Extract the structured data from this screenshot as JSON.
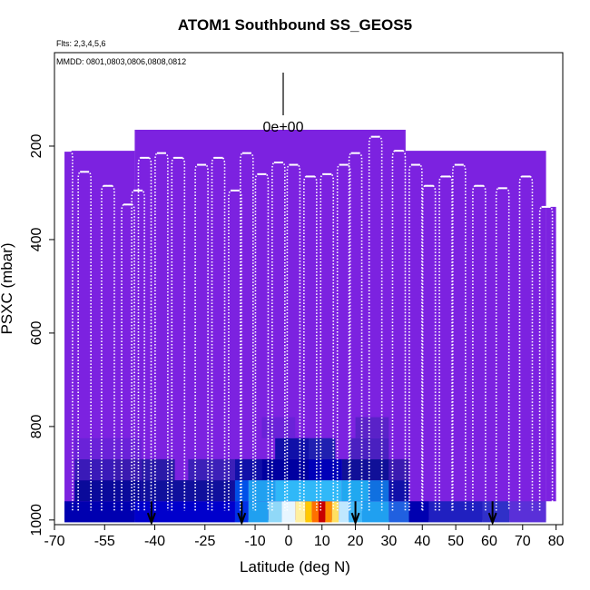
{
  "chart_data": {
    "type": "heatmap",
    "title": "ATOM1 Southbound SS_GEOS5",
    "flights_note": "Flts: 2,3,4,5,6",
    "dates_note": "MMDD: 0801,0803,0806,0808,0812",
    "xlabel": "Latitude (deg N)",
    "ylabel": "PSXC (mbar)",
    "xlim": [
      -70,
      82
    ],
    "ylim": [
      1010,
      0
    ],
    "x_ticks": [
      -70,
      -55,
      -40,
      -25,
      -10,
      0,
      10,
      20,
      30,
      40,
      50,
      60,
      70,
      80
    ],
    "x_tick_labels": [
      "-70",
      "-55",
      "-40",
      "-25",
      "-10",
      "0",
      "10",
      "20",
      "30",
      "40",
      "50",
      "60",
      "70",
      "80"
    ],
    "y_ticks": [
      200,
      400,
      600,
      800,
      1000
    ],
    "y_tick_labels": [
      "200",
      "400",
      "600",
      "800",
      "1000"
    ],
    "scale_label": "0e+00",
    "background_color": "#7c22e0",
    "arrows_lat": [
      -41,
      -14,
      20,
      61
    ],
    "background_blocks": [
      {
        "lat": [
          -67,
          -46
        ],
        "p": [
          210,
          1000
        ]
      },
      {
        "lat": [
          -46,
          35
        ],
        "p": [
          165,
          1000
        ]
      },
      {
        "lat": [
          35,
          77
        ],
        "p": [
          210,
          1000
        ]
      },
      {
        "lat": [
          77,
          80
        ],
        "p": [
          330,
          960
        ]
      }
    ],
    "cells": [
      {
        "lat": [
          -67,
          -46
        ],
        "p": [
          960,
          1005
        ],
        "c": "#0000b0"
      },
      {
        "lat": [
          -46,
          -16
        ],
        "p": [
          960,
          1005
        ],
        "c": "#0000cc"
      },
      {
        "lat": [
          -64,
          -44
        ],
        "p": [
          915,
          960
        ],
        "c": "#0a0a9a"
      },
      {
        "lat": [
          -44,
          -16
        ],
        "p": [
          915,
          960
        ],
        "c": "#10109c"
      },
      {
        "lat": [
          -16,
          -12
        ],
        "p": [
          960,
          1005
        ],
        "c": "#0030e8"
      },
      {
        "lat": [
          -12,
          -6
        ],
        "p": [
          960,
          1005
        ],
        "c": "#20a0f0"
      },
      {
        "lat": [
          -6,
          -2
        ],
        "p": [
          960,
          1005
        ],
        "c": "#90d8f8"
      },
      {
        "lat": [
          -2,
          2
        ],
        "p": [
          960,
          1005
        ],
        "c": "#e8f6ff"
      },
      {
        "lat": [
          2,
          5
        ],
        "p": [
          960,
          1005
        ],
        "c": "#fff0a0"
      },
      {
        "lat": [
          5,
          7
        ],
        "p": [
          960,
          1005
        ],
        "c": "#ffc800"
      },
      {
        "lat": [
          7,
          9
        ],
        "p": [
          960,
          1005
        ],
        "c": "#ff7000"
      },
      {
        "lat": [
          9,
          11
        ],
        "p": [
          960,
          1005
        ],
        "c": "#c80000"
      },
      {
        "lat": [
          11,
          13
        ],
        "p": [
          960,
          1005
        ],
        "c": "#ff9000"
      },
      {
        "lat": [
          13,
          15
        ],
        "p": [
          960,
          1005
        ],
        "c": "#ffe060"
      },
      {
        "lat": [
          15,
          18
        ],
        "p": [
          960,
          1005
        ],
        "c": "#c0e8ff"
      },
      {
        "lat": [
          18,
          22
        ],
        "p": [
          960,
          1005
        ],
        "c": "#40b8f8"
      },
      {
        "lat": [
          22,
          30
        ],
        "p": [
          960,
          1005
        ],
        "c": "#20a0f0"
      },
      {
        "lat": [
          30,
          36
        ],
        "p": [
          960,
          1005
        ],
        "c": "#2060e0"
      },
      {
        "lat": [
          36,
          42
        ],
        "p": [
          960,
          1005
        ],
        "c": "#0000b0"
      },
      {
        "lat": [
          42,
          58
        ],
        "p": [
          960,
          1005
        ],
        "c": "#2020c0"
      },
      {
        "lat": [
          58,
          66
        ],
        "p": [
          960,
          1005
        ],
        "c": "#3030c8"
      },
      {
        "lat": [
          66,
          77
        ],
        "p": [
          960,
          1005
        ],
        "c": "#5a30d8"
      },
      {
        "lat": [
          -16,
          -12
        ],
        "p": [
          915,
          960
        ],
        "c": "#0050e8"
      },
      {
        "lat": [
          -12,
          -4
        ],
        "p": [
          915,
          960
        ],
        "c": "#20a0f0"
      },
      {
        "lat": [
          -4,
          16
        ],
        "p": [
          915,
          960
        ],
        "c": "#30b8f8"
      },
      {
        "lat": [
          16,
          24
        ],
        "p": [
          915,
          960
        ],
        "c": "#20a8f0"
      },
      {
        "lat": [
          24,
          30
        ],
        "p": [
          915,
          960
        ],
        "c": "#1070e0"
      },
      {
        "lat": [
          30,
          36
        ],
        "p": [
          915,
          960
        ],
        "c": "#1010a8"
      },
      {
        "lat": [
          -64,
          -52
        ],
        "p": [
          870,
          915
        ],
        "c": "#3a1ab8"
      },
      {
        "lat": [
          -52,
          -44
        ],
        "p": [
          870,
          915
        ],
        "c": "#3a1ab0"
      },
      {
        "lat": [
          -44,
          -34
        ],
        "p": [
          870,
          915
        ],
        "c": "#2a1aa8"
      },
      {
        "lat": [
          -30,
          -16
        ],
        "p": [
          870,
          915
        ],
        "c": "#3c20b8"
      },
      {
        "lat": [
          -16,
          -8
        ],
        "p": [
          870,
          915
        ],
        "c": "#1010a8"
      },
      {
        "lat": [
          -8,
          6
        ],
        "p": [
          870,
          915
        ],
        "c": "#0000a0"
      },
      {
        "lat": [
          6,
          16
        ],
        "p": [
          870,
          915
        ],
        "c": "#0000b8"
      },
      {
        "lat": [
          16,
          30
        ],
        "p": [
          870,
          915
        ],
        "c": "#101098"
      },
      {
        "lat": [
          30,
          36
        ],
        "p": [
          870,
          915
        ],
        "c": "#3a1ab0"
      },
      {
        "lat": [
          -4,
          6
        ],
        "p": [
          825,
          870
        ],
        "c": "#1010a8"
      },
      {
        "lat": [
          6,
          14
        ],
        "p": [
          825,
          870
        ],
        "c": "#2020b0"
      },
      {
        "lat": [
          18,
          30
        ],
        "p": [
          825,
          870
        ],
        "c": "#4a20c0"
      },
      {
        "lat": [
          -64,
          -44
        ],
        "p": [
          825,
          870
        ],
        "c": "#6a22d8"
      },
      {
        "lat": [
          20,
          30
        ],
        "p": [
          780,
          825
        ],
        "c": "#5a22c8"
      },
      {
        "lat": [
          -8,
          2
        ],
        "p": [
          780,
          825
        ],
        "c": "#6a22d8"
      }
    ],
    "profiles": [
      {
        "lat": -66.5,
        "pmin": 210
      },
      {
        "lat": -61,
        "pmin": 255
      },
      {
        "lat": -54,
        "pmin": 285
      },
      {
        "lat": -48,
        "pmin": 325
      },
      {
        "lat": -45,
        "pmin": 295
      },
      {
        "lat": -43,
        "pmin": 225
      },
      {
        "lat": -38,
        "pmin": 215
      },
      {
        "lat": -33,
        "pmin": 225
      },
      {
        "lat": -26,
        "pmin": 240
      },
      {
        "lat": -21,
        "pmin": 225
      },
      {
        "lat": -16,
        "pmin": 295
      },
      {
        "lat": -12.5,
        "pmin": 215
      },
      {
        "lat": -8,
        "pmin": 260
      },
      {
        "lat": -3,
        "pmin": 235
      },
      {
        "lat": 1.5,
        "pmin": 240
      },
      {
        "lat": 6.5,
        "pmin": 265
      },
      {
        "lat": 11.5,
        "pmin": 260
      },
      {
        "lat": 16.5,
        "pmin": 240
      },
      {
        "lat": 20,
        "pmin": 215
      },
      {
        "lat": 26,
        "pmin": 180
      },
      {
        "lat": 33,
        "pmin": 210
      },
      {
        "lat": 38,
        "pmin": 240
      },
      {
        "lat": 42,
        "pmin": 285
      },
      {
        "lat": 47,
        "pmin": 265
      },
      {
        "lat": 51,
        "pmin": 240
      },
      {
        "lat": 57,
        "pmin": 285
      },
      {
        "lat": 64,
        "pmin": 290
      },
      {
        "lat": 71,
        "pmin": 265
      },
      {
        "lat": 77,
        "pmin": 330
      }
    ]
  }
}
